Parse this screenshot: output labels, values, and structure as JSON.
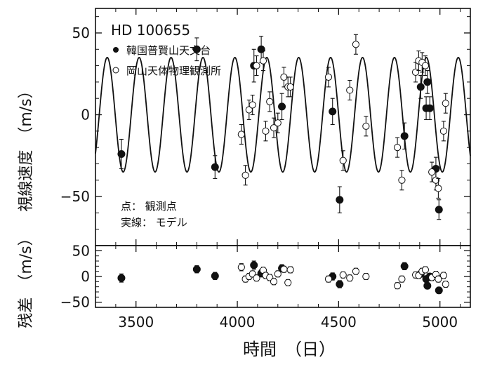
{
  "chart_data": {
    "type": "scatter",
    "title": "HD 100655",
    "xlabel": "時間　（日）",
    "xlim": [
      3300,
      5150
    ],
    "xticks": [
      3500,
      4000,
      4500,
      5000
    ],
    "legend": {
      "placement": "top-left",
      "entries": [
        {
          "marker": "filled-circle",
          "label": "韓国普賢山天文台"
        },
        {
          "marker": "open-circle",
          "label": "岡山天体物理観測所"
        }
      ]
    },
    "annotation": {
      "lines": [
        "点：  観測点",
        "実線：  モデル"
      ]
    },
    "top_panel": {
      "ylabel": "視線速度　（m/s）",
      "ylim": [
        -80,
        65
      ],
      "yticks": [
        50,
        0,
        -50
      ],
      "yticklabels": [
        "50",
        "0",
        "−50"
      ],
      "model": {
        "type": "sine",
        "amplitude": 35,
        "period": 157.5,
        "phase_ref_x": 3358,
        "offset": 0
      },
      "series": [
        {
          "name": "韓国普賢山天文台",
          "marker": "filled",
          "x": [
            3428,
            3800,
            3890,
            4082,
            4118,
            4220,
            4470,
            4505,
            4825,
            4905,
            4932,
            4938,
            4950,
            4980,
            4995
          ],
          "y": [
            -24,
            40,
            -32,
            30,
            40,
            5,
            2,
            -52,
            -13,
            17,
            4,
            20,
            4,
            -33,
            -58
          ],
          "err": [
            9,
            7,
            7,
            10,
            8,
            8,
            8,
            8,
            8,
            7,
            7,
            7,
            7,
            7,
            6
          ]
        },
        {
          "name": "岡山天体物理観測所",
          "marker": "open",
          "x": [
            4020,
            4040,
            4058,
            4075,
            4095,
            4128,
            4140,
            4160,
            4180,
            4200,
            4230,
            4250,
            4262,
            4450,
            4522,
            4555,
            4585,
            4635,
            4790,
            4812,
            4880,
            4895,
            4912,
            4928,
            4960,
            4980,
            4992,
            5018,
            5028
          ],
          "y": [
            -12,
            -37,
            3,
            6,
            30,
            33,
            -10,
            8,
            -8,
            -5,
            23,
            17,
            17,
            23,
            -28,
            15,
            43,
            -7,
            -20,
            -40,
            26,
            33,
            32,
            30,
            -35,
            -40,
            -45,
            -10,
            7
          ],
          "err": [
            6,
            6,
            6,
            6,
            6,
            6,
            6,
            6,
            6,
            6,
            6,
            6,
            6,
            6,
            6,
            6,
            6,
            6,
            6,
            6,
            6,
            6,
            6,
            6,
            6,
            6,
            6,
            6,
            6
          ]
        }
      ]
    },
    "bottom_panel": {
      "ylabel": "残差　（m/s）",
      "ylim": [
        -60,
        60
      ],
      "yticks": [
        50,
        0,
        -50
      ],
      "yticklabels": [
        "50",
        "0",
        "−50"
      ],
      "series": [
        {
          "name": "韓国普賢山天文台",
          "marker": "filled",
          "x": [
            3428,
            3800,
            3890,
            4082,
            4118,
            4220,
            4470,
            4505,
            4825,
            4905,
            4932,
            4938,
            4950,
            4980,
            4995
          ],
          "y": [
            -3,
            14,
            1,
            22,
            6,
            16,
            0,
            -15,
            20,
            5,
            -5,
            -18,
            0,
            1,
            -27
          ],
          "err": [
            8,
            7,
            7,
            8,
            7,
            7,
            7,
            7,
            7,
            6,
            6,
            6,
            6,
            6,
            6
          ]
        },
        {
          "name": "岡山天体物理観測所",
          "marker": "open",
          "x": [
            4020,
            4040,
            4058,
            4075,
            4095,
            4128,
            4140,
            4160,
            4180,
            4200,
            4230,
            4250,
            4262,
            4450,
            4522,
            4555,
            4585,
            4635,
            4790,
            4812,
            4880,
            4895,
            4912,
            4928,
            4960,
            4980,
            4992,
            5018,
            5028
          ],
          "y": [
            18,
            -5,
            0,
            5,
            -3,
            12,
            2,
            -2,
            -10,
            5,
            14,
            -12,
            13,
            -5,
            3,
            -3,
            10,
            0,
            -18,
            -5,
            3,
            2,
            10,
            13,
            -2,
            4,
            -5,
            2,
            -15
          ],
          "err": [
            7,
            6,
            6,
            6,
            6,
            6,
            6,
            6,
            6,
            6,
            6,
            6,
            6,
            6,
            6,
            6,
            6,
            6,
            6,
            6,
            6,
            6,
            6,
            6,
            6,
            6,
            6,
            6,
            6
          ]
        }
      ]
    }
  }
}
